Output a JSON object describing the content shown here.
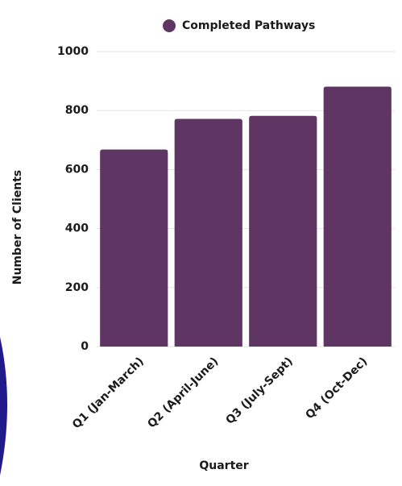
{
  "chart_data": {
    "type": "bar",
    "legend_title": null,
    "series": [
      {
        "name": "Completed Pathways",
        "color": "#5e3563",
        "values": [
          668,
          772,
          782,
          881
        ]
      }
    ],
    "categories": [
      "Q1 (Jan-March)",
      "Q2 (April-June)",
      "Q3 (July-Sept)",
      "Q4 (Oct-Dec)"
    ],
    "xlabel": "Quarter",
    "ylabel": "Number of Clients",
    "ylim": [
      0,
      1000
    ],
    "yticks": [
      0,
      200,
      400,
      600,
      800,
      1000
    ],
    "grid": true,
    "legend": "top"
  }
}
